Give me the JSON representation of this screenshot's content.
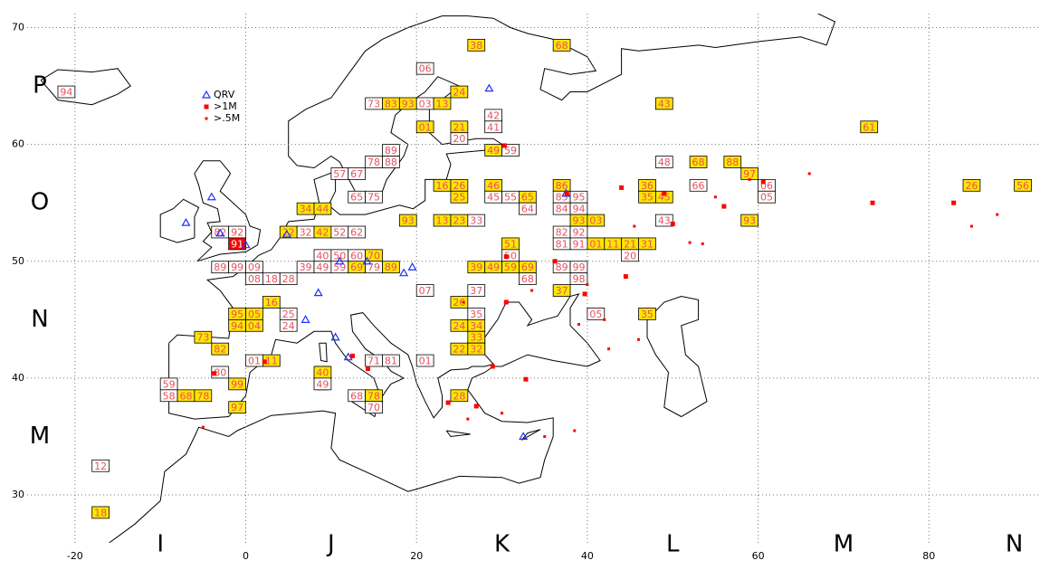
{
  "chart_data": {
    "type": "map",
    "xlim": [
      -25.6,
      92.9
    ],
    "ylim": [
      25.9,
      71.2
    ],
    "xticks": [
      -20,
      0,
      20,
      40,
      60,
      80
    ],
    "yticks": [
      30,
      40,
      50,
      60,
      70
    ],
    "grid": true,
    "lon_fields": [
      {
        "value": -10,
        "label": "I"
      },
      {
        "value": 10,
        "label": "J"
      },
      {
        "value": 30,
        "label": "K"
      },
      {
        "value": 50,
        "label": "L"
      },
      {
        "value": 70,
        "label": "M"
      },
      {
        "value": 90,
        "label": "N"
      }
    ],
    "lat_fields": [
      {
        "value": 65,
        "label": "P"
      },
      {
        "value": 55,
        "label": "O"
      },
      {
        "value": 45,
        "label": "N"
      },
      {
        "value": 35,
        "label": "M"
      }
    ],
    "label_color": "#e8505a",
    "coast_color": "#000000",
    "legend": "upper left",
    "series": [
      {
        "name": "QRV",
        "color": "#2030ff",
        "marker": "triangle",
        "lon": [
          28.5,
          37.5,
          32.5,
          -7,
          -3,
          0,
          -4,
          8.5,
          7,
          10.5,
          12,
          11,
          14.2,
          18.5,
          19.5,
          4.8
        ],
        "lat": [
          64.8,
          55.8,
          35,
          53.3,
          52.4,
          51.4,
          55.5,
          47.3,
          45,
          43.5,
          41.8,
          50,
          50,
          49,
          49.5,
          52.3
        ]
      },
      {
        "name": ">1M",
        "color": "#ff0000",
        "marker": "square",
        "lon": [
          37.6,
          30.3,
          44,
          49,
          50,
          39.7,
          36.2,
          30.5,
          28.9,
          32.8,
          44.5,
          56,
          60.6,
          73.4,
          82.9,
          23.7,
          14.3,
          -3.7,
          2.2,
          12.5,
          30.5,
          27
        ],
        "lat": [
          55.8,
          59.9,
          56.3,
          55.8,
          53.2,
          47.2,
          50,
          50.4,
          41,
          39.9,
          48.7,
          54.7,
          56.8,
          55,
          55,
          37.9,
          40.8,
          40.4,
          41.4,
          41.9,
          46.5,
          37.6
        ]
      },
      {
        "name": ">.5M",
        "color": "#ff0000",
        "marker": "dot",
        "lon": [
          35,
          42,
          46,
          55,
          59,
          66,
          85,
          88,
          52,
          39,
          30,
          38.5,
          26,
          -5,
          45.5,
          53.5,
          40,
          33.5,
          25.5,
          42.5
        ],
        "lat": [
          35,
          45,
          43.3,
          55.5,
          57,
          57.5,
          53,
          54,
          51.6,
          44.6,
          37,
          35.5,
          36.5,
          35.8,
          53,
          51.5,
          48,
          47.5,
          46.5,
          42.5
        ]
      }
    ],
    "squares": [
      {
        "label": "38",
        "lon": 27,
        "lat": 68.5,
        "color": "#ffe600"
      },
      {
        "label": "68",
        "lon": 37,
        "lat": 68.5,
        "color": "#ffe600"
      },
      {
        "label": "06",
        "lon": 21,
        "lat": 66.5,
        "color": "#ffffff"
      },
      {
        "label": "24",
        "lon": 25,
        "lat": 64.5,
        "color": "#ffe600"
      },
      {
        "label": "94",
        "lon": -21,
        "lat": 64.5,
        "color": "#ffffff"
      },
      {
        "label": "73",
        "lon": 15,
        "lat": 63.5,
        "color": "#ffffff"
      },
      {
        "label": "83",
        "lon": 17,
        "lat": 63.5,
        "color": "#ffe600"
      },
      {
        "label": "93",
        "lon": 19,
        "lat": 63.5,
        "color": "#ffe600"
      },
      {
        "label": "03",
        "lon": 21,
        "lat": 63.5,
        "color": "#ffffff"
      },
      {
        "label": "13",
        "lon": 23,
        "lat": 63.5,
        "color": "#ffe600"
      },
      {
        "label": "43",
        "lon": 49,
        "lat": 63.5,
        "color": "#ffe600"
      },
      {
        "label": "42",
        "lon": 29,
        "lat": 62.5,
        "color": "#ffffff"
      },
      {
        "label": "61",
        "lon": 73,
        "lat": 61.5,
        "color": "#ffe600"
      },
      {
        "label": "01",
        "lon": 21,
        "lat": 61.5,
        "color": "#ffe600"
      },
      {
        "label": "21",
        "lon": 25,
        "lat": 61.5,
        "color": "#ffe600"
      },
      {
        "label": "41",
        "lon": 29,
        "lat": 61.5,
        "color": "#ffffff"
      },
      {
        "label": "20",
        "lon": 25,
        "lat": 60.5,
        "color": "#ffffff"
      },
      {
        "label": "89",
        "lon": 17,
        "lat": 59.5,
        "color": "#ffffff"
      },
      {
        "label": "49",
        "lon": 29,
        "lat": 59.5,
        "color": "#ffe600"
      },
      {
        "label": "59",
        "lon": 31,
        "lat": 59.5,
        "color": "#ffffff"
      },
      {
        "label": "78",
        "lon": 15,
        "lat": 58.5,
        "color": "#ffffff"
      },
      {
        "label": "88",
        "lon": 17,
        "lat": 58.5,
        "color": "#ffffff"
      },
      {
        "label": "48",
        "lon": 49,
        "lat": 58.5,
        "color": "#ffffff"
      },
      {
        "label": "68",
        "lon": 53,
        "lat": 58.5,
        "color": "#ffe600"
      },
      {
        "label": "88",
        "lon": 57,
        "lat": 58.5,
        "color": "#ffe600"
      },
      {
        "label": "57",
        "lon": 11,
        "lat": 57.5,
        "color": "#ffffff"
      },
      {
        "label": "67",
        "lon": 13,
        "lat": 57.5,
        "color": "#ffffff"
      },
      {
        "label": "97",
        "lon": 59,
        "lat": 57.5,
        "color": "#ffe600"
      },
      {
        "label": "16",
        "lon": 23,
        "lat": 56.5,
        "color": "#ffe600"
      },
      {
        "label": "26",
        "lon": 25,
        "lat": 56.5,
        "color": "#ffe600"
      },
      {
        "label": "46",
        "lon": 29,
        "lat": 56.5,
        "color": "#ffe600"
      },
      {
        "label": "86",
        "lon": 37,
        "lat": 56.5,
        "color": "#ffe600"
      },
      {
        "label": "36",
        "lon": 47,
        "lat": 56.5,
        "color": "#ffe600"
      },
      {
        "label": "66",
        "lon": 53,
        "lat": 56.5,
        "color": "#ffffff"
      },
      {
        "label": "06",
        "lon": 61,
        "lat": 56.5,
        "color": "#ffffff"
      },
      {
        "label": "26",
        "lon": 85,
        "lat": 56.5,
        "color": "#ffe600"
      },
      {
        "label": "56",
        "lon": 91,
        "lat": 56.5,
        "color": "#ffe600"
      },
      {
        "label": "65",
        "lon": 13,
        "lat": 55.5,
        "color": "#ffffff"
      },
      {
        "label": "75",
        "lon": 15,
        "lat": 55.5,
        "color": "#ffffff"
      },
      {
        "label": "25",
        "lon": 25,
        "lat": 55.5,
        "color": "#ffe600"
      },
      {
        "label": "45",
        "lon": 29,
        "lat": 55.5,
        "color": "#ffffff"
      },
      {
        "label": "55",
        "lon": 31,
        "lat": 55.5,
        "color": "#ffffff"
      },
      {
        "label": "65",
        "lon": 33,
        "lat": 55.5,
        "color": "#ffe600"
      },
      {
        "label": "85",
        "lon": 37,
        "lat": 55.5,
        "color": "#ffffff"
      },
      {
        "label": "95",
        "lon": 39,
        "lat": 55.5,
        "color": "#ffffff"
      },
      {
        "label": "35",
        "lon": 47,
        "lat": 55.5,
        "color": "#ffe600"
      },
      {
        "label": "45",
        "lon": 49,
        "lat": 55.5,
        "color": "#ffe600"
      },
      {
        "label": "05",
        "lon": 61,
        "lat": 55.5,
        "color": "#ffffff"
      },
      {
        "label": "34",
        "lon": 7,
        "lat": 54.5,
        "color": "#ffe600"
      },
      {
        "label": "44",
        "lon": 9,
        "lat": 54.5,
        "color": "#ffe600"
      },
      {
        "label": "64",
        "lon": 33,
        "lat": 54.5,
        "color": "#ffffff"
      },
      {
        "label": "84",
        "lon": 37,
        "lat": 54.5,
        "color": "#ffffff"
      },
      {
        "label": "94",
        "lon": 39,
        "lat": 54.5,
        "color": "#ffffff"
      },
      {
        "label": "93",
        "lon": 19,
        "lat": 53.5,
        "color": "#ffe600"
      },
      {
        "label": "13",
        "lon": 23,
        "lat": 53.5,
        "color": "#ffe600"
      },
      {
        "label": "23",
        "lon": 25,
        "lat": 53.5,
        "color": "#ffe600"
      },
      {
        "label": "33",
        "lon": 27,
        "lat": 53.5,
        "color": "#ffffff"
      },
      {
        "label": "93",
        "lon": 39,
        "lat": 53.5,
        "color": "#ffe600"
      },
      {
        "label": "03",
        "lon": 41,
        "lat": 53.5,
        "color": "#ffe600"
      },
      {
        "label": "43",
        "lon": 49,
        "lat": 53.5,
        "color": "#ffffff"
      },
      {
        "label": "93",
        "lon": 59,
        "lat": 53.5,
        "color": "#ffe600"
      },
      {
        "label": "22",
        "lon": 5,
        "lat": 52.5,
        "color": "#ffe600"
      },
      {
        "label": "32",
        "lon": 7,
        "lat": 52.5,
        "color": "#ffffff"
      },
      {
        "label": "42",
        "lon": 9,
        "lat": 52.5,
        "color": "#ffe600"
      },
      {
        "label": "52",
        "lon": 11,
        "lat": 52.5,
        "color": "#ffffff"
      },
      {
        "label": "62",
        "lon": 13,
        "lat": 52.5,
        "color": "#ffffff"
      },
      {
        "label": "82",
        "lon": -3,
        "lat": 52.5,
        "color": "#ffffff"
      },
      {
        "label": "92",
        "lon": -1,
        "lat": 52.5,
        "color": "#ffffff"
      },
      {
        "label": "82",
        "lon": 37,
        "lat": 52.5,
        "color": "#ffffff"
      },
      {
        "label": "92",
        "lon": 39,
        "lat": 52.5,
        "color": "#ffffff"
      },
      {
        "label": "91",
        "lon": -1,
        "lat": 51.5,
        "color": "#ff0000"
      },
      {
        "label": "51",
        "lon": 31,
        "lat": 51.5,
        "color": "#ffe600"
      },
      {
        "label": "81",
        "lon": 37,
        "lat": 51.5,
        "color": "#ffffff"
      },
      {
        "label": "91",
        "lon": 39,
        "lat": 51.5,
        "color": "#ffffff"
      },
      {
        "label": "01",
        "lon": 41,
        "lat": 51.5,
        "color": "#ffe600"
      },
      {
        "label": "11",
        "lon": 43,
        "lat": 51.5,
        "color": "#ffe600"
      },
      {
        "label": "21",
        "lon": 45,
        "lat": 51.5,
        "color": "#ffe600"
      },
      {
        "label": "31",
        "lon": 47,
        "lat": 51.5,
        "color": "#ffe600"
      },
      {
        "label": "40",
        "lon": 9,
        "lat": 50.5,
        "color": "#ffffff"
      },
      {
        "label": "50",
        "lon": 11,
        "lat": 50.5,
        "color": "#ffffff"
      },
      {
        "label": "60",
        "lon": 13,
        "lat": 50.5,
        "color": "#ffffff"
      },
      {
        "label": "70",
        "lon": 15,
        "lat": 50.5,
        "color": "#ffe600"
      },
      {
        "label": "50",
        "lon": 31,
        "lat": 50.5,
        "color": "#ffffff"
      },
      {
        "label": "20",
        "lon": 45,
        "lat": 50.5,
        "color": "#ffffff"
      },
      {
        "label": "89",
        "lon": -3,
        "lat": 49.5,
        "color": "#ffffff"
      },
      {
        "label": "99",
        "lon": -1,
        "lat": 49.5,
        "color": "#ffffff"
      },
      {
        "label": "09",
        "lon": 1,
        "lat": 49.5,
        "color": "#ffffff"
      },
      {
        "label": "39",
        "lon": 7,
        "lat": 49.5,
        "color": "#ffffff"
      },
      {
        "label": "49",
        "lon": 9,
        "lat": 49.5,
        "color": "#ffffff"
      },
      {
        "label": "59",
        "lon": 11,
        "lat": 49.5,
        "color": "#ffffff"
      },
      {
        "label": "69",
        "lon": 13,
        "lat": 49.5,
        "color": "#ffe600"
      },
      {
        "label": "79",
        "lon": 15,
        "lat": 49.5,
        "color": "#ffffff"
      },
      {
        "label": "89",
        "lon": 17,
        "lat": 49.5,
        "color": "#ffe600"
      },
      {
        "label": "39",
        "lon": 27,
        "lat": 49.5,
        "color": "#ffe600"
      },
      {
        "label": "49",
        "lon": 29,
        "lat": 49.5,
        "color": "#ffe600"
      },
      {
        "label": "59",
        "lon": 31,
        "lat": 49.5,
        "color": "#ffe600"
      },
      {
        "label": "69",
        "lon": 33,
        "lat": 49.5,
        "color": "#ffe600"
      },
      {
        "label": "89",
        "lon": 37,
        "lat": 49.5,
        "color": "#ffffff"
      },
      {
        "label": "99",
        "lon": 39,
        "lat": 49.5,
        "color": "#ffffff"
      },
      {
        "label": "08",
        "lon": 1,
        "lat": 48.5,
        "color": "#ffffff"
      },
      {
        "label": "18",
        "lon": 3,
        "lat": 48.5,
        "color": "#ffffff"
      },
      {
        "label": "28",
        "lon": 5,
        "lat": 48.5,
        "color": "#ffffff"
      },
      {
        "label": "68",
        "lon": 33,
        "lat": 48.5,
        "color": "#ffffff"
      },
      {
        "label": "98",
        "lon": 39,
        "lat": 48.5,
        "color": "#ffffff"
      },
      {
        "label": "07",
        "lon": 21,
        "lat": 47.5,
        "color": "#ffffff"
      },
      {
        "label": "37",
        "lon": 27,
        "lat": 47.5,
        "color": "#ffffff"
      },
      {
        "label": "37",
        "lon": 37,
        "lat": 47.5,
        "color": "#ffe600"
      },
      {
        "label": "16",
        "lon": 3,
        "lat": 46.5,
        "color": "#ffe600"
      },
      {
        "label": "26",
        "lon": 25,
        "lat": 46.5,
        "color": "#ffe600"
      },
      {
        "label": "95",
        "lon": -1,
        "lat": 45.5,
        "color": "#ffe600"
      },
      {
        "label": "05",
        "lon": 1,
        "lat": 45.5,
        "color": "#ffe600"
      },
      {
        "label": "25",
        "lon": 5,
        "lat": 45.5,
        "color": "#ffffff"
      },
      {
        "label": "35",
        "lon": 27,
        "lat": 45.5,
        "color": "#ffffff"
      },
      {
        "label": "05",
        "lon": 41,
        "lat": 45.5,
        "color": "#ffffff"
      },
      {
        "label": "35",
        "lon": 47,
        "lat": 45.5,
        "color": "#ffe600"
      },
      {
        "label": "94",
        "lon": -1,
        "lat": 44.5,
        "color": "#ffe600"
      },
      {
        "label": "04",
        "lon": 1,
        "lat": 44.5,
        "color": "#ffe600"
      },
      {
        "label": "24",
        "lon": 5,
        "lat": 44.5,
        "color": "#ffffff"
      },
      {
        "label": "24",
        "lon": 25,
        "lat": 44.5,
        "color": "#ffe600"
      },
      {
        "label": "34",
        "lon": 27,
        "lat": 44.5,
        "color": "#ffe600"
      },
      {
        "label": "73",
        "lon": -5,
        "lat": 43.5,
        "color": "#ffe600"
      },
      {
        "label": "33",
        "lon": 27,
        "lat": 43.5,
        "color": "#ffe600"
      },
      {
        "label": "82",
        "lon": -3,
        "lat": 42.5,
        "color": "#ffe600"
      },
      {
        "label": "22",
        "lon": 25,
        "lat": 42.5,
        "color": "#ffe600"
      },
      {
        "label": "32",
        "lon": 27,
        "lat": 42.5,
        "color": "#ffe600"
      },
      {
        "label": "01",
        "lon": 1,
        "lat": 41.5,
        "color": "#ffffff"
      },
      {
        "label": "11",
        "lon": 3,
        "lat": 41.5,
        "color": "#ffe600"
      },
      {
        "label": "71",
        "lon": 15,
        "lat": 41.5,
        "color": "#ffffff"
      },
      {
        "label": "81",
        "lon": 17,
        "lat": 41.5,
        "color": "#ffffff"
      },
      {
        "label": "01",
        "lon": 21,
        "lat": 41.5,
        "color": "#ffffff"
      },
      {
        "label": "80",
        "lon": -3,
        "lat": 40.5,
        "color": "#ffffff"
      },
      {
        "label": "40",
        "lon": 9,
        "lat": 40.5,
        "color": "#ffe600"
      },
      {
        "label": "99",
        "lon": -1,
        "lat": 39.5,
        "color": "#ffe600"
      },
      {
        "label": "49",
        "lon": 9,
        "lat": 39.5,
        "color": "#ffffff"
      },
      {
        "label": "59",
        "lon": -9,
        "lat": 39.5,
        "color": "#ffffff"
      },
      {
        "label": "58",
        "lon": -9,
        "lat": 38.5,
        "color": "#ffffff"
      },
      {
        "label": "68",
        "lon": -7,
        "lat": 38.5,
        "color": "#ffe600"
      },
      {
        "label": "78",
        "lon": -5,
        "lat": 38.5,
        "color": "#ffe600"
      },
      {
        "label": "68",
        "lon": 13,
        "lat": 38.5,
        "color": "#ffffff"
      },
      {
        "label": "78",
        "lon": 15,
        "lat": 38.5,
        "color": "#ffe600"
      },
      {
        "label": "28",
        "lon": 25,
        "lat": 38.5,
        "color": "#ffe600"
      },
      {
        "label": "97",
        "lon": -1,
        "lat": 37.5,
        "color": "#ffe600"
      },
      {
        "label": "70",
        "lon": 15,
        "lat": 37.5,
        "color": "#ffffff"
      },
      {
        "label": "12",
        "lon": -17,
        "lat": 32.5,
        "color": "#ffffff"
      },
      {
        "label": "18",
        "lon": -17,
        "lat": 28.5,
        "color": "#ffe600"
      }
    ]
  }
}
